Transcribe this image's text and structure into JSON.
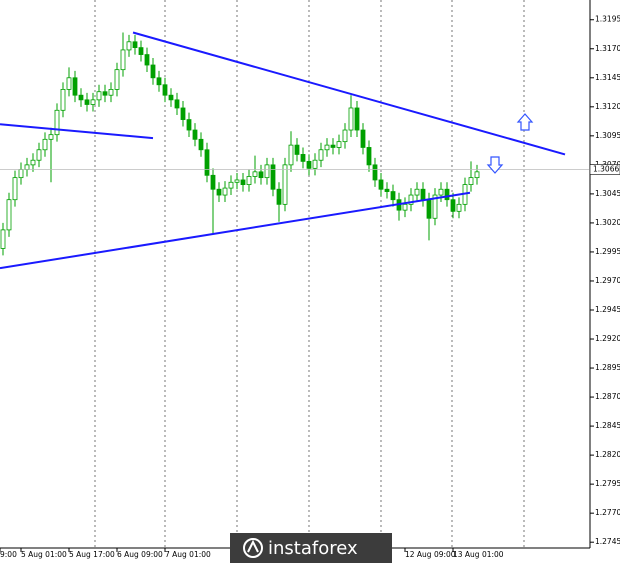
{
  "chart_data": {
    "type": "candlestick",
    "color": "#00a000",
    "open": [
      1.2998,
      1.3014,
      1.304,
      1.3059,
      1.3066,
      1.307,
      1.3074,
      1.3083,
      1.3092,
      1.3096,
      1.3117,
      1.3135,
      1.3145,
      1.313,
      1.3126,
      1.3122,
      1.3126,
      1.3133,
      1.313,
      1.3135,
      1.3152,
      1.3169,
      1.3176,
      1.3171,
      1.3165,
      1.3156,
      1.3145,
      1.3139,
      1.313,
      1.3126,
      1.3119,
      1.3109,
      1.31,
      1.3092,
      1.3083,
      1.3061,
      1.3049,
      1.3044,
      1.305,
      1.3055,
      1.3057,
      1.3053,
      1.306,
      1.3064,
      1.3059,
      1.307,
      1.3049,
      1.3036,
      1.307,
      1.3087,
      1.3079,
      1.3073,
      1.3067,
      1.3074,
      1.3083,
      1.3087,
      1.3085,
      1.309,
      1.31,
      1.3119,
      1.31,
      1.3085,
      1.307,
      1.3057,
      1.3049,
      1.3047,
      1.304,
      1.3031,
      1.3036,
      1.3044,
      1.3049,
      1.304,
      1.3024,
      1.3044,
      1.3049,
      1.304,
      1.303,
      1.3036,
      1.3053,
      1.3059
    ],
    "high": [
      1.302,
      1.3046,
      1.3065,
      1.3072,
      1.3076,
      1.308,
      1.3089,
      1.3098,
      1.3102,
      1.3123,
      1.3141,
      1.3154,
      1.3151,
      1.3136,
      1.3132,
      1.3132,
      1.3139,
      1.3139,
      1.3141,
      1.3158,
      1.3184,
      1.3182,
      1.3182,
      1.3177,
      1.3171,
      1.3162,
      1.3151,
      1.3145,
      1.3136,
      1.3132,
      1.3125,
      1.3115,
      1.3106,
      1.3098,
      1.3089,
      1.3067,
      1.3055,
      1.3056,
      1.3061,
      1.3063,
      1.3063,
      1.3066,
      1.3078,
      1.307,
      1.3076,
      1.3076,
      1.3055,
      1.3076,
      1.3099,
      1.3093,
      1.3085,
      1.3079,
      1.308,
      1.3089,
      1.3093,
      1.3093,
      1.3096,
      1.3106,
      1.313,
      1.3125,
      1.3106,
      1.3091,
      1.3076,
      1.3063,
      1.3055,
      1.3053,
      1.3046,
      1.3042,
      1.305,
      1.3055,
      1.3055,
      1.3046,
      1.305,
      1.3055,
      1.3055,
      1.3046,
      1.3042,
      1.3059,
      1.3073,
      1.307
    ],
    "low": [
      1.2992,
      1.3008,
      1.3034,
      1.3053,
      1.306,
      1.3064,
      1.3068,
      1.3077,
      1.3055,
      1.309,
      1.3111,
      1.3129,
      1.3124,
      1.312,
      1.3116,
      1.3116,
      1.312,
      1.3124,
      1.3124,
      1.3129,
      1.3146,
      1.3163,
      1.3165,
      1.3159,
      1.315,
      1.3139,
      1.3133,
      1.3124,
      1.312,
      1.3113,
      1.3103,
      1.3094,
      1.3086,
      1.3077,
      1.3055,
      1.3011,
      1.3038,
      1.3038,
      1.3044,
      1.3049,
      1.3047,
      1.3047,
      1.3054,
      1.3053,
      1.3053,
      1.3043,
      1.3021,
      1.303,
      1.3064,
      1.3073,
      1.3067,
      1.3061,
      1.3061,
      1.3068,
      1.3077,
      1.3079,
      1.3079,
      1.3084,
      1.3094,
      1.3094,
      1.3079,
      1.3064,
      1.3051,
      1.3043,
      1.3041,
      1.3034,
      1.3022,
      1.3025,
      1.303,
      1.3038,
      1.3034,
      1.3005,
      1.3018,
      1.3038,
      1.3034,
      1.3024,
      1.3024,
      1.303,
      1.3047,
      1.3053
    ],
    "close": [
      1.3014,
      1.304,
      1.3059,
      1.3066,
      1.307,
      1.3074,
      1.3083,
      1.3092,
      1.3096,
      1.3117,
      1.3135,
      1.3145,
      1.313,
      1.3126,
      1.3122,
      1.3126,
      1.3133,
      1.313,
      1.3135,
      1.3152,
      1.3169,
      1.3176,
      1.3171,
      1.3165,
      1.3156,
      1.3145,
      1.3139,
      1.313,
      1.3126,
      1.3119,
      1.3109,
      1.31,
      1.3092,
      1.3083,
      1.3061,
      1.3049,
      1.3044,
      1.305,
      1.3055,
      1.3057,
      1.3053,
      1.306,
      1.3064,
      1.3059,
      1.307,
      1.3049,
      1.3036,
      1.307,
      1.3087,
      1.3079,
      1.3073,
      1.3067,
      1.3074,
      1.3083,
      1.3087,
      1.3085,
      1.309,
      1.31,
      1.3119,
      1.31,
      1.3085,
      1.307,
      1.3057,
      1.3049,
      1.3047,
      1.304,
      1.3031,
      1.3036,
      1.3044,
      1.3049,
      1.304,
      1.3024,
      1.3044,
      1.3049,
      1.304,
      1.303,
      1.3036,
      1.3053,
      1.3059,
      1.3064
    ],
    "ylim": [
      1.274,
      1.3212
    ],
    "yticks": [
      1.3195,
      {
        "value": 1.317,
        "label": "1.3170"
      },
      1.3145,
      {
        "value": 1.312,
        "label": "1.3120"
      },
      1.3095,
      {
        "value": 1.307,
        "label": "1.3070"
      },
      1.3045,
      {
        "value": 1.302,
        "label": "1.3020"
      },
      1.2995,
      {
        "value": 1.297,
        "label": "1.2970"
      },
      1.2945,
      {
        "value": 1.292,
        "label": "1.2920"
      },
      1.2895,
      {
        "value": 1.287,
        "label": "1.2870"
      },
      1.2845,
      {
        "value": 1.282,
        "label": "1.2820"
      },
      1.2795,
      {
        "value": 1.277,
        "label": "1.2770"
      },
      1.2745
    ],
    "xticks": [
      {
        "value": -0.5,
        "label": "9:00"
      },
      {
        "value": 3,
        "label": "5 Aug 01:00"
      },
      {
        "value": 11,
        "label": "5 Aug 17:00"
      },
      {
        "value": 19,
        "label": "6 Aug 09:00"
      },
      {
        "value": 27,
        "label": "7 Aug 01:00"
      },
      {
        "value": 67,
        "label": "12 Aug 09:00"
      },
      {
        "value": 75,
        "label": "13 Aug 01:00"
      }
    ],
    "price_line": {
      "value": 1.3066,
      "label": "1.3066"
    },
    "trendlines": [
      {
        "x": [
          21.67,
          93.67
        ],
        "y": [
          1.3184,
          1.3079
        ],
        "color": "#1a1aff"
      },
      {
        "x": [
          -0.5,
          77.83
        ],
        "y": [
          1.2981,
          1.3046
        ],
        "color": "#1a1aff"
      },
      {
        "x": [
          -0.5,
          25.0
        ],
        "y": [
          1.3105,
          1.3093
        ],
        "color": "#1a1aff"
      }
    ],
    "watermark": "instaforex"
  }
}
